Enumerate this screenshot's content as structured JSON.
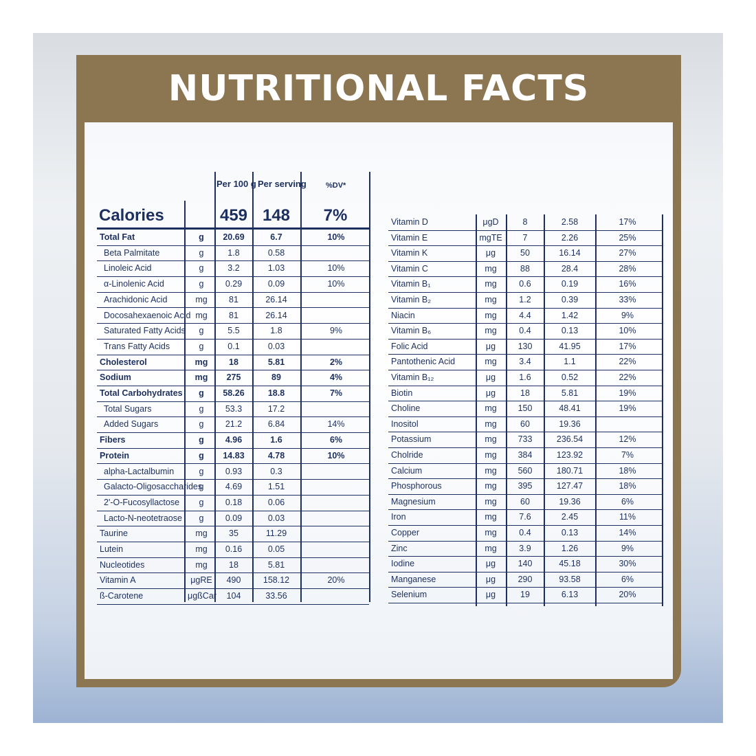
{
  "title": "NUTRITIONAL FACTS",
  "colors": {
    "frame": "#8c7651",
    "text": "#1c2f5e"
  },
  "left_table": {
    "headers": {
      "per100": "Per 100 g",
      "serving": "Per serving",
      "dv": "%DV*"
    },
    "calories": {
      "label": "Calories",
      "per100": "459",
      "serving": "148",
      "dv": "7%"
    },
    "rows": [
      {
        "name": "Total Fat",
        "unit": "g",
        "per100": "20.69",
        "serving": "6.7",
        "dv": "10%",
        "bold": true,
        "sub": false
      },
      {
        "name": "Beta Palmitate",
        "unit": "g",
        "per100": "1.8",
        "serving": "0.58",
        "dv": "",
        "bold": false,
        "sub": true
      },
      {
        "name": "Linoleic Acid",
        "unit": "g",
        "per100": "3.2",
        "serving": "1.03",
        "dv": "10%",
        "bold": false,
        "sub": true
      },
      {
        "name": "α-Linolenic Acid",
        "unit": "g",
        "per100": "0.29",
        "serving": "0.09",
        "dv": "10%",
        "bold": false,
        "sub": true
      },
      {
        "name": "Arachidonic Acid",
        "unit": "mg",
        "per100": "81",
        "serving": "26.14",
        "dv": "",
        "bold": false,
        "sub": true
      },
      {
        "name": "Docosahexaenoic Acid",
        "unit": "mg",
        "per100": "81",
        "serving": "26.14",
        "dv": "",
        "bold": false,
        "sub": true
      },
      {
        "name": "Saturated Fatty Acids",
        "unit": "g",
        "per100": "5.5",
        "serving": "1.8",
        "dv": "9%",
        "bold": false,
        "sub": true
      },
      {
        "name": "Trans Fatty Acids",
        "unit": "g",
        "per100": "0.1",
        "serving": "0.03",
        "dv": "",
        "bold": false,
        "sub": true
      },
      {
        "name": "Cholesterol",
        "unit": "mg",
        "per100": "18",
        "serving": "5.81",
        "dv": "2%",
        "bold": true,
        "sub": false
      },
      {
        "name": "Sodium",
        "unit": "mg",
        "per100": "275",
        "serving": "89",
        "dv": "4%",
        "bold": true,
        "sub": false
      },
      {
        "name": "Total Carbohydrates",
        "unit": "g",
        "per100": "58.26",
        "serving": "18.8",
        "dv": "7%",
        "bold": true,
        "sub": false
      },
      {
        "name": "Total Sugars",
        "unit": "g",
        "per100": "53.3",
        "serving": "17.2",
        "dv": "",
        "bold": false,
        "sub": true
      },
      {
        "name": "Added Sugars",
        "unit": "g",
        "per100": "21.2",
        "serving": "6.84",
        "dv": "14%",
        "bold": false,
        "sub": true
      },
      {
        "name": "Fibers",
        "unit": "g",
        "per100": "4.96",
        "serving": "1.6",
        "dv": "6%",
        "bold": true,
        "sub": false
      },
      {
        "name": "Protein",
        "unit": "g",
        "per100": "14.83",
        "serving": "4.78",
        "dv": "10%",
        "bold": true,
        "sub": false
      },
      {
        "name": "alpha-Lactalbumin",
        "unit": "g",
        "per100": "0.93",
        "serving": "0.3",
        "dv": "",
        "bold": false,
        "sub": true
      },
      {
        "name": "Galacto-Oligosaccharides",
        "unit": "g",
        "per100": "4.69",
        "serving": "1.51",
        "dv": "",
        "bold": false,
        "sub": true
      },
      {
        "name": "2'-O-Fucosyllactose",
        "unit": "g",
        "per100": "0.18",
        "serving": "0.06",
        "dv": "",
        "bold": false,
        "sub": true
      },
      {
        "name": "Lacto-N-neotetraose",
        "unit": "g",
        "per100": "0.09",
        "serving": "0.03",
        "dv": "",
        "bold": false,
        "sub": true
      },
      {
        "name": "Taurine",
        "unit": "mg",
        "per100": "35",
        "serving": "11.29",
        "dv": "",
        "bold": false,
        "sub": false
      },
      {
        "name": "Lutein",
        "unit": "mg",
        "per100": "0.16",
        "serving": "0.05",
        "dv": "",
        "bold": false,
        "sub": false
      },
      {
        "name": "Nucleotides",
        "unit": "mg",
        "per100": "18",
        "serving": "5.81",
        "dv": "",
        "bold": false,
        "sub": false
      },
      {
        "name": "Vitamin A",
        "unit": "μgRE",
        "per100": "490",
        "serving": "158.12",
        "dv": "20%",
        "bold": false,
        "sub": false
      },
      {
        "name": "ß-Carotene",
        "unit": "μgßCar",
        "per100": "104",
        "serving": "33.56",
        "dv": "",
        "bold": false,
        "sub": false
      }
    ]
  },
  "right_table": {
    "rows": [
      {
        "name": "Vitamin D",
        "unit": "μgD",
        "per100": "8",
        "serving": "2.58",
        "dv": "17%"
      },
      {
        "name": "Vitamin E",
        "unit": "mgTE",
        "per100": "7",
        "serving": "2.26",
        "dv": "25%"
      },
      {
        "name": "Vitamin K",
        "unit": "μg",
        "per100": "50",
        "serving": "16.14",
        "dv": "27%"
      },
      {
        "name": "Vitamin C",
        "unit": "mg",
        "per100": "88",
        "serving": "28.4",
        "dv": "28%"
      },
      {
        "name": "Vitamin B₁",
        "unit": "mg",
        "per100": "0.6",
        "serving": "0.19",
        "dv": "16%"
      },
      {
        "name": "Vitamin B₂",
        "unit": "mg",
        "per100": "1.2",
        "serving": "0.39",
        "dv": "33%"
      },
      {
        "name": "Niacin",
        "unit": "mg",
        "per100": "4.4",
        "serving": "1.42",
        "dv": "9%"
      },
      {
        "name": "Vitamin B₆",
        "unit": "mg",
        "per100": "0.4",
        "serving": "0.13",
        "dv": "10%"
      },
      {
        "name": "Folic Acid",
        "unit": "μg",
        "per100": "130",
        "serving": "41.95",
        "dv": "17%"
      },
      {
        "name": "Pantothenic Acid",
        "unit": "mg",
        "per100": "3.4",
        "serving": "1.1",
        "dv": "22%"
      },
      {
        "name": "Vitamin B₁₂",
        "unit": "μg",
        "per100": "1.6",
        "serving": "0.52",
        "dv": "22%"
      },
      {
        "name": "Biotin",
        "unit": "μg",
        "per100": "18",
        "serving": "5.81",
        "dv": "19%"
      },
      {
        "name": "Choline",
        "unit": "mg",
        "per100": "150",
        "serving": "48.41",
        "dv": "19%"
      },
      {
        "name": "Inositol",
        "unit": "mg",
        "per100": "60",
        "serving": "19.36",
        "dv": ""
      },
      {
        "name": "Potassium",
        "unit": "mg",
        "per100": "733",
        "serving": "236.54",
        "dv": "12%"
      },
      {
        "name": "Cholride",
        "unit": "mg",
        "per100": "384",
        "serving": "123.92",
        "dv": "7%"
      },
      {
        "name": "Calcium",
        "unit": "mg",
        "per100": "560",
        "serving": "180.71",
        "dv": "18%"
      },
      {
        "name": "Phosphorous",
        "unit": "mg",
        "per100": "395",
        "serving": "127.47",
        "dv": "18%"
      },
      {
        "name": "Magnesium",
        "unit": "mg",
        "per100": "60",
        "serving": "19.36",
        "dv": "6%"
      },
      {
        "name": "Iron",
        "unit": "mg",
        "per100": "7.6",
        "serving": "2.45",
        "dv": "11%"
      },
      {
        "name": "Copper",
        "unit": "mg",
        "per100": "0.4",
        "serving": "0.13",
        "dv": "14%"
      },
      {
        "name": "Zinc",
        "unit": "mg",
        "per100": "3.9",
        "serving": "1.26",
        "dv": "9%"
      },
      {
        "name": "Iodine",
        "unit": "μg",
        "per100": "140",
        "serving": "45.18",
        "dv": "30%"
      },
      {
        "name": "Manganese",
        "unit": "μg",
        "per100": "290",
        "serving": "93.58",
        "dv": "6%"
      },
      {
        "name": "Selenium",
        "unit": "μg",
        "per100": "19",
        "serving": "6.13",
        "dv": "20%"
      }
    ]
  }
}
